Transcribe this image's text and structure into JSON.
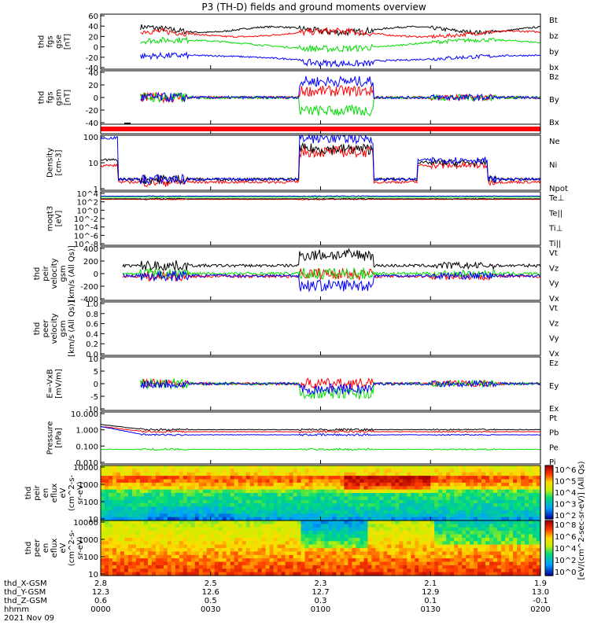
{
  "title": "P3 (TH-D) fields and ground moments overview",
  "colors": {
    "black": "#000000",
    "red": "#ff0000",
    "green": "#00dd00",
    "blue": "#0000ff"
  },
  "footer": {
    "labels": [
      "thd_X-GSM",
      "thd_Y-GSM",
      "thd_Z-GSM",
      "hhmm",
      "2021 Nov 09"
    ],
    "columns": [
      [
        "2.8",
        "12.3",
        "0.6",
        "0000"
      ],
      [
        "2.5",
        "12.6",
        "0.5",
        "0030"
      ],
      [
        "2.3",
        "12.7",
        "0.3",
        "0100"
      ],
      [
        "2.1",
        "12.9",
        "0.1",
        "0130"
      ],
      [
        "1.9",
        "13.0",
        "-0.1",
        "0200"
      ]
    ]
  },
  "colorbar": {
    "label": "[eV/(cm^2-sec-sr-eV)] (All Qs)",
    "ticks1": [
      "10^6",
      "10^5",
      "10^4",
      "10^3",
      "10^2"
    ],
    "ticks2": [
      "10^8",
      "10^6",
      "10^4",
      "10^2",
      "10^0"
    ]
  },
  "chart_data": [
    {
      "type": "line",
      "ylabel": [
        "thd",
        "fgs",
        "gse",
        "[nT]"
      ],
      "yticks": [
        "60",
        "40",
        "20",
        "0",
        "-20",
        "-40"
      ],
      "ylim": [
        -40,
        60
      ],
      "series": [
        {
          "name": "Bt",
          "color": "black"
        },
        {
          "name": "bz",
          "color": "red"
        },
        {
          "name": "by",
          "color": "green"
        },
        {
          "name": "bx",
          "color": "blue"
        }
      ]
    },
    {
      "type": "line",
      "ylabel": [
        "thd",
        "fgs",
        "gsm",
        "[nT]"
      ],
      "yticks": [
        "40",
        "20",
        "0",
        "-20",
        "-40"
      ],
      "ylim": [
        -50,
        40
      ],
      "series": [
        {
          "name": "Bz",
          "color": "red"
        },
        {
          "name": "By",
          "color": "green"
        },
        {
          "name": "Bx",
          "color": "blue"
        }
      ]
    },
    {
      "type": "bar",
      "ylabel": [],
      "yticks": [],
      "series": []
    },
    {
      "type": "line",
      "ylabel": [
        "Density",
        "[cm-3]"
      ],
      "yticks": [
        "100",
        "10",
        "1"
      ],
      "log": true,
      "series": [
        {
          "name": "Ne",
          "color": "red"
        },
        {
          "name": "Ni",
          "color": "black"
        },
        {
          "name": "Npot",
          "color": "blue"
        }
      ]
    },
    {
      "type": "line",
      "ylabel": [
        "moqt3",
        "[eV]"
      ],
      "yticks": [
        "10^4",
        "10^2",
        "10^0",
        "10^-2",
        "10^-4",
        "10^-6",
        "10^-8"
      ],
      "log": true,
      "series": [
        {
          "name": "Te⊥",
          "color": "red"
        },
        {
          "name": "Te||",
          "color": "black"
        },
        {
          "name": "Ti⊥",
          "color": "blue"
        },
        {
          "name": "Ti||",
          "color": "green"
        }
      ]
    },
    {
      "type": "line",
      "ylabel": [
        "thd",
        "peir",
        "velocity",
        "gsm",
        "[km/s (All Qs)]"
      ],
      "yticks": [
        "400",
        "200",
        "0",
        "-200",
        "-400"
      ],
      "ylim": [
        -400,
        400
      ],
      "series": [
        {
          "name": "Vt",
          "color": "black"
        },
        {
          "name": "Vz",
          "color": "red"
        },
        {
          "name": "Vy",
          "color": "green"
        },
        {
          "name": "Vx",
          "color": "blue"
        }
      ]
    },
    {
      "type": "line",
      "ylabel": [
        "thd",
        "peer",
        "velocity",
        "gsm",
        "[km/s (All Qs)]"
      ],
      "yticks": [
        "1.0",
        "0.8",
        "0.6",
        "0.4",
        "0.2",
        "0.0"
      ],
      "ylim": [
        0,
        1
      ],
      "series": [
        {
          "name": "Vt",
          "color": "black"
        },
        {
          "name": "Vz",
          "color": "red"
        },
        {
          "name": "Vy",
          "color": "green"
        },
        {
          "name": "Vx",
          "color": "blue"
        }
      ]
    },
    {
      "type": "line",
      "ylabel": [
        "E=-VxB",
        "[mV/m]"
      ],
      "yticks": [
        "10",
        "5",
        "0",
        "-5",
        "-10"
      ],
      "ylim": [
        -10,
        10
      ],
      "series": [
        {
          "name": "Ez",
          "color": "red"
        },
        {
          "name": "Ey",
          "color": "green"
        },
        {
          "name": "Ex",
          "color": "blue"
        }
      ]
    },
    {
      "type": "line",
      "ylabel": [
        "Pressure",
        "[nPa]"
      ],
      "yticks": [
        "10.000",
        "1.000",
        "0.100",
        "0.010"
      ],
      "log": true,
      "series": [
        {
          "name": "Pt",
          "color": "black"
        },
        {
          "name": "Pb",
          "color": "red"
        },
        {
          "name": "Pe",
          "color": "green"
        },
        {
          "name": "Pi",
          "color": "blue"
        }
      ]
    },
    {
      "type": "heatmap",
      "ylabel": [
        "thd",
        "peir",
        "en",
        "eflux",
        "eV",
        "(cm^2-s-",
        "sr-eV)"
      ],
      "yticks": [
        "10000",
        "1000",
        "100",
        "10"
      ],
      "log": true,
      "series": []
    },
    {
      "type": "heatmap",
      "ylabel": [
        "thd",
        "peer",
        "en",
        "eflux",
        "eV",
        "(cm^2-s-",
        "sr-eV)"
      ],
      "yticks": [
        "10000",
        "1000",
        "100",
        "10"
      ],
      "log": true,
      "series": []
    }
  ]
}
